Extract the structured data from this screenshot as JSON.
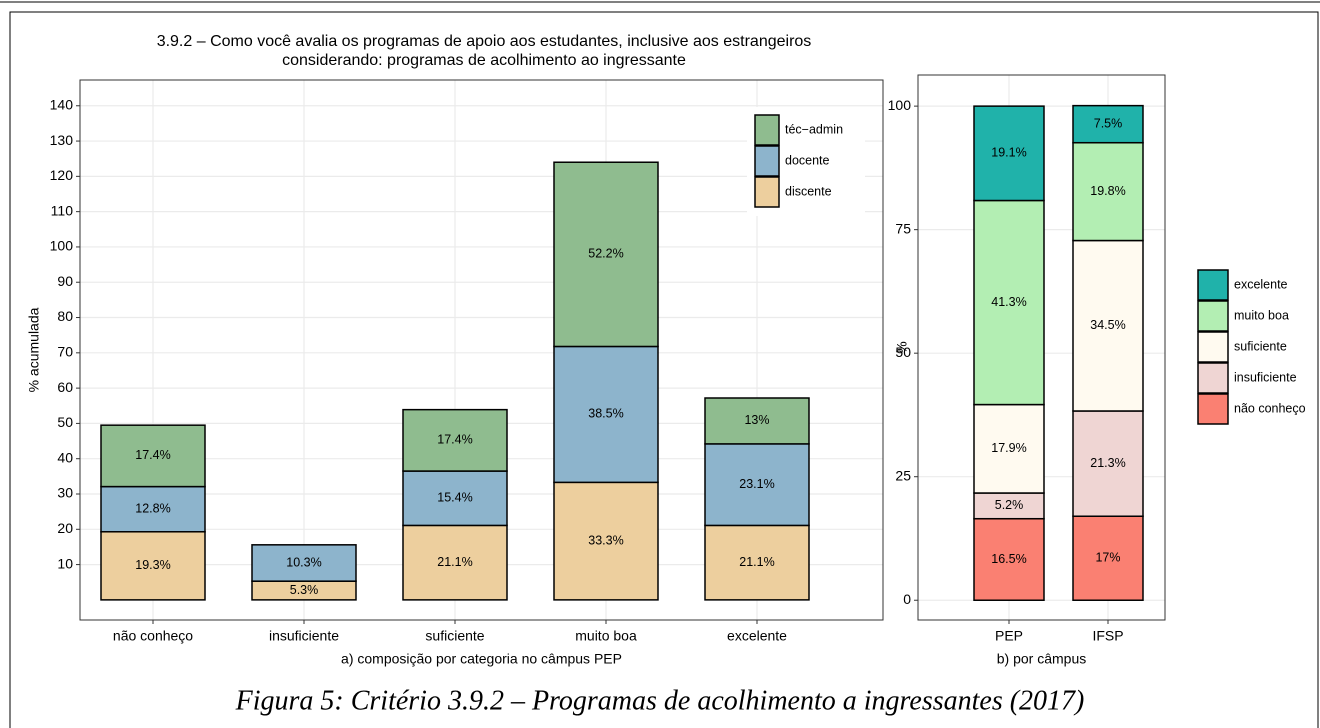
{
  "caption": "Figura 5: Critério 3.9.2 – Programas de acolhimento a ingressantes (2017)",
  "chart_data": [
    {
      "type": "bar",
      "stacked": true,
      "title": "3.9.2 – Como você avalia os programas de apoio aos estudantes, inclusive aos estrangeiros",
      "subtitle": "considerando: programas de acolhimento ao ingressante",
      "xlabel": "a) composição por categoria no câmpus PEP",
      "ylabel": "% acumulada",
      "categories": [
        "não conheço",
        "insuficiente",
        "suficiente",
        "muito boa",
        "excelente"
      ],
      "series": [
        {
          "name": "discente",
          "color": "#EDCF9E",
          "values": [
            19.3,
            5.3,
            21.1,
            33.3,
            21.1
          ],
          "value_labels": [
            "19.3%",
            "5.3%",
            "21.1%",
            "33.3%",
            "21.1%"
          ]
        },
        {
          "name": "docente",
          "color": "#8DB4CC",
          "values": [
            12.8,
            10.3,
            15.4,
            38.5,
            23.1
          ],
          "value_labels": [
            "12.8%",
            "10.3%",
            "15.4%",
            "38.5%",
            "23.1%"
          ]
        },
        {
          "name": "téc−admin",
          "color": "#8FBC8F",
          "values": [
            17.4,
            null,
            17.4,
            52.2,
            13
          ],
          "value_labels": [
            "17.4%",
            null,
            "17.4%",
            "52.2%",
            "13%"
          ]
        }
      ],
      "ylim": [
        -5.7,
        147.3
      ],
      "yticks": [
        10,
        20,
        30,
        40,
        50,
        60,
        70,
        80,
        90,
        100,
        110,
        120,
        130,
        140
      ],
      "grid": true,
      "legend": "top-right"
    },
    {
      "type": "bar",
      "stacked": true,
      "xlabel": "b) por câmpus",
      "ylabel": "%",
      "categories": [
        "PEP",
        "IFSP"
      ],
      "series": [
        {
          "name": "não conheço",
          "color": "#FA8072",
          "values": [
            16.5,
            17
          ],
          "value_labels": [
            "16.5%",
            "17%"
          ]
        },
        {
          "name": "insuficiente",
          "color": "#EFD5D3",
          "values": [
            5.2,
            21.3
          ],
          "value_labels": [
            "5.2%",
            "21.3%"
          ]
        },
        {
          "name": "suficiente",
          "color": "#FFFAF0",
          "values": [
            17.9,
            34.5
          ],
          "value_labels": [
            "17.9%",
            "34.5%"
          ]
        },
        {
          "name": "muito boa",
          "color": "#B3EEB3",
          "values": [
            41.3,
            19.8
          ],
          "value_labels": [
            "41.3%",
            "19.8%"
          ]
        },
        {
          "name": "excelente",
          "color": "#20B2AA",
          "values": [
            19.1,
            7.5
          ],
          "value_labels": [
            "19.1%",
            "7.5%"
          ]
        }
      ],
      "ylim": [
        -4,
        106.3
      ],
      "yticks": [
        0,
        25,
        50,
        75,
        100
      ],
      "grid": true,
      "legend": "right"
    }
  ]
}
